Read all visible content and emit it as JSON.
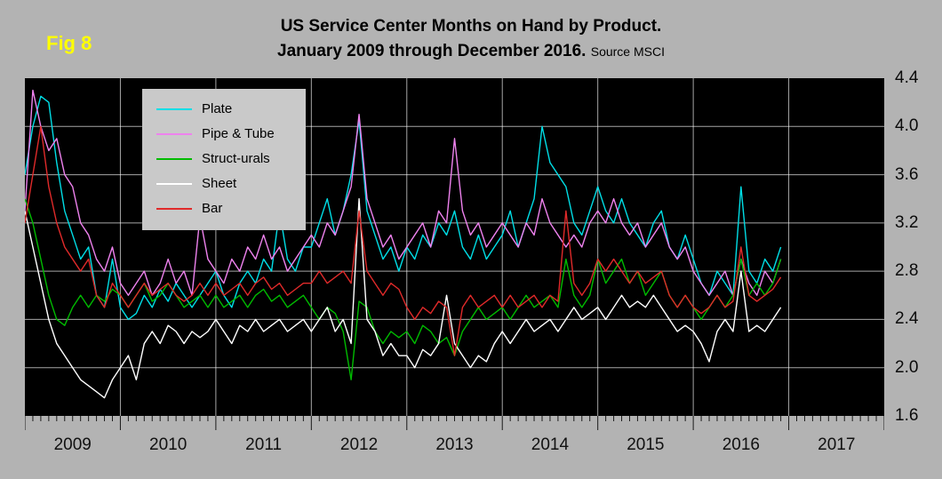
{
  "fig_label": "Fig 8",
  "title": {
    "line1": "US Service Center Months on Hand by Product.",
    "line2": "January 2009 through December 2016.",
    "source": "Source MSCI"
  },
  "colors": {
    "page_bg": "#b3b3b3",
    "plot_bg": "#000000",
    "legend_bg": "#c9c9c9",
    "fig_label": "#ffff00",
    "gridline": "rgba(255,255,255,0.65)"
  },
  "chart_data": {
    "type": "line",
    "title": "US Service Center Months on Hand by Product. January 2009 through December 2016.",
    "source": "Source MSCI",
    "x_years": [
      "2009",
      "2010",
      "2011",
      "2012",
      "2013",
      "2014",
      "2015",
      "2016",
      "2017"
    ],
    "months_per_year": 12,
    "x_range_note": "monthly data, Jan 2009 - Dec 2016",
    "ylim": [
      1.6,
      4.4
    ],
    "y_ticks": [
      4.4,
      4.0,
      3.6,
      3.2,
      2.8,
      2.4,
      2.0,
      1.6
    ],
    "y_axis_side": "right",
    "grid": true,
    "legend_position": "top-left",
    "series": [
      {
        "name": "Plate",
        "color": "#00DEE6",
        "values": [
          3.6,
          4.0,
          4.25,
          4.2,
          3.7,
          3.3,
          3.1,
          2.9,
          3.0,
          2.6,
          2.5,
          2.9,
          2.5,
          2.4,
          2.45,
          2.6,
          2.5,
          2.65,
          2.55,
          2.7,
          2.6,
          2.5,
          2.6,
          2.7,
          2.8,
          2.6,
          2.5,
          2.7,
          2.8,
          2.7,
          2.9,
          2.8,
          3.3,
          2.9,
          2.8,
          3.0,
          3.0,
          3.2,
          3.4,
          3.1,
          3.3,
          3.6,
          4.05,
          3.3,
          3.1,
          2.9,
          3.0,
          2.8,
          3.0,
          2.9,
          3.1,
          3.0,
          3.2,
          3.1,
          3.3,
          3.0,
          2.9,
          3.1,
          2.9,
          3.0,
          3.1,
          3.3,
          3.0,
          3.2,
          3.4,
          4.0,
          3.7,
          3.6,
          3.5,
          3.2,
          3.1,
          3.3,
          3.5,
          3.3,
          3.2,
          3.4,
          3.2,
          3.1,
          3.0,
          3.2,
          3.3,
          3.0,
          2.9,
          3.1,
          2.9,
          2.7,
          2.6,
          2.8,
          2.7,
          2.6,
          3.5,
          2.8,
          2.7,
          2.9,
          2.8,
          3.0
        ]
      },
      {
        "name": "Pipe & Tube",
        "color": "#EE82EE",
        "values": [
          3.3,
          4.3,
          4.0,
          3.8,
          3.9,
          3.6,
          3.5,
          3.2,
          3.1,
          2.9,
          2.8,
          3.0,
          2.7,
          2.6,
          2.7,
          2.8,
          2.6,
          2.7,
          2.9,
          2.7,
          2.8,
          2.6,
          3.25,
          2.9,
          2.8,
          2.7,
          2.9,
          2.8,
          3.0,
          2.9,
          3.1,
          2.9,
          3.0,
          2.8,
          2.9,
          3.0,
          3.1,
          3.0,
          3.2,
          3.1,
          3.3,
          3.5,
          4.1,
          3.4,
          3.2,
          3.0,
          3.1,
          2.9,
          3.0,
          3.1,
          3.2,
          3.0,
          3.3,
          3.2,
          3.9,
          3.3,
          3.1,
          3.2,
          3.0,
          3.1,
          3.2,
          3.1,
          3.0,
          3.2,
          3.1,
          3.4,
          3.2,
          3.1,
          3.0,
          3.1,
          3.0,
          3.2,
          3.3,
          3.2,
          3.4,
          3.2,
          3.1,
          3.2,
          3.0,
          3.1,
          3.2,
          3.0,
          2.9,
          3.0,
          2.8,
          2.7,
          2.6,
          2.7,
          2.8,
          2.6,
          2.9,
          2.7,
          2.6,
          2.8,
          2.7,
          2.9
        ]
      },
      {
        "name": "Struct-urals",
        "color": "#00BB00",
        "values": [
          3.4,
          3.2,
          2.9,
          2.6,
          2.4,
          2.35,
          2.5,
          2.6,
          2.5,
          2.6,
          2.55,
          2.65,
          2.6,
          2.5,
          2.6,
          2.7,
          2.55,
          2.6,
          2.7,
          2.6,
          2.5,
          2.55,
          2.6,
          2.5,
          2.6,
          2.5,
          2.55,
          2.6,
          2.5,
          2.6,
          2.65,
          2.55,
          2.6,
          2.5,
          2.55,
          2.6,
          2.5,
          2.4,
          2.5,
          2.45,
          2.3,
          1.9,
          2.55,
          2.5,
          2.3,
          2.2,
          2.3,
          2.25,
          2.3,
          2.2,
          2.35,
          2.3,
          2.2,
          2.25,
          2.1,
          2.3,
          2.4,
          2.5,
          2.4,
          2.45,
          2.5,
          2.4,
          2.5,
          2.6,
          2.5,
          2.55,
          2.6,
          2.5,
          2.9,
          2.6,
          2.5,
          2.6,
          2.9,
          2.7,
          2.8,
          2.9,
          2.7,
          2.8,
          2.6,
          2.7,
          2.8,
          2.6,
          2.5,
          2.6,
          2.5,
          2.4,
          2.5,
          2.6,
          2.5,
          2.6,
          2.9,
          2.6,
          2.7,
          2.6,
          2.7,
          2.9
        ]
      },
      {
        "name": "Sheet",
        "color": "#FFFFFF",
        "values": [
          3.3,
          3.0,
          2.7,
          2.4,
          2.2,
          2.1,
          2.0,
          1.9,
          1.85,
          1.8,
          1.75,
          1.9,
          2.0,
          2.1,
          1.9,
          2.2,
          2.3,
          2.2,
          2.35,
          2.3,
          2.2,
          2.3,
          2.25,
          2.3,
          2.4,
          2.3,
          2.2,
          2.35,
          2.3,
          2.4,
          2.3,
          2.35,
          2.4,
          2.3,
          2.35,
          2.4,
          2.3,
          2.4,
          2.5,
          2.3,
          2.4,
          2.2,
          3.4,
          2.4,
          2.3,
          2.1,
          2.2,
          2.1,
          2.1,
          2.0,
          2.15,
          2.1,
          2.2,
          2.6,
          2.2,
          2.1,
          2.0,
          2.1,
          2.05,
          2.2,
          2.3,
          2.2,
          2.3,
          2.4,
          2.3,
          2.35,
          2.4,
          2.3,
          2.4,
          2.5,
          2.4,
          2.45,
          2.5,
          2.4,
          2.5,
          2.6,
          2.5,
          2.55,
          2.5,
          2.6,
          2.5,
          2.4,
          2.3,
          2.35,
          2.3,
          2.2,
          2.05,
          2.3,
          2.4,
          2.3,
          2.8,
          2.3,
          2.35,
          2.3,
          2.4,
          2.5
        ]
      },
      {
        "name": "Bar",
        "color": "#E02A2A",
        "values": [
          3.2,
          3.6,
          4.0,
          3.5,
          3.2,
          3.0,
          2.9,
          2.8,
          2.9,
          2.6,
          2.5,
          2.7,
          2.6,
          2.5,
          2.6,
          2.7,
          2.6,
          2.65,
          2.7,
          2.6,
          2.55,
          2.6,
          2.7,
          2.6,
          2.7,
          2.6,
          2.65,
          2.7,
          2.6,
          2.7,
          2.75,
          2.65,
          2.7,
          2.6,
          2.65,
          2.7,
          2.7,
          2.8,
          2.7,
          2.75,
          2.8,
          2.7,
          3.3,
          2.8,
          2.7,
          2.6,
          2.7,
          2.65,
          2.5,
          2.4,
          2.5,
          2.45,
          2.55,
          2.5,
          2.1,
          2.5,
          2.6,
          2.5,
          2.55,
          2.6,
          2.5,
          2.6,
          2.5,
          2.55,
          2.6,
          2.5,
          2.6,
          2.55,
          3.3,
          2.7,
          2.6,
          2.7,
          2.9,
          2.8,
          2.9,
          2.8,
          2.7,
          2.8,
          2.7,
          2.75,
          2.8,
          2.6,
          2.5,
          2.6,
          2.5,
          2.45,
          2.5,
          2.6,
          2.5,
          2.55,
          3.0,
          2.6,
          2.55,
          2.6,
          2.65,
          2.75
        ]
      }
    ]
  }
}
